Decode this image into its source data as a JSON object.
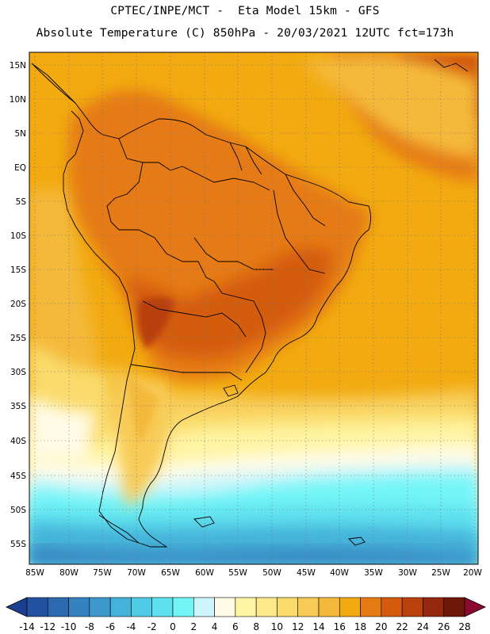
{
  "header": {
    "line1": "CPTEC/INPE/MCT -  Eta Model 15km - GFS",
    "line2": "Absolute Temperature (C) 850hPa - 20/03/2021 12UTC fct=173h"
  },
  "map": {
    "lat_labels": [
      "15N",
      "10N",
      "5N",
      "EQ",
      "5S",
      "10S",
      "15S",
      "20S",
      "25S",
      "30S",
      "35S",
      "40S",
      "45S",
      "50S",
      "55S"
    ],
    "lon_labels": [
      "85W",
      "80W",
      "75W",
      "70W",
      "65W",
      "60W",
      "55W",
      "50W",
      "45W",
      "40W",
      "35W",
      "30W",
      "25W",
      "20W"
    ]
  },
  "legend": {
    "labels": [
      "-14",
      "-12",
      "-10",
      "-8",
      "-6",
      "-4",
      "-2",
      "0",
      "2",
      "4",
      "6",
      "8",
      "10",
      "12",
      "14",
      "16",
      "18",
      "20",
      "22",
      "24",
      "26",
      "28"
    ],
    "colors": [
      "#1c3f8f",
      "#22519f",
      "#2c6ab0",
      "#3582bf",
      "#3d99cc",
      "#44b2d9",
      "#4fcbe6",
      "#5fe0ee",
      "#73f5f6",
      "#ccf5fc",
      "#fffbe6",
      "#fff4a3",
      "#fde98a",
      "#fadb6c",
      "#f7cb56",
      "#f4b93b",
      "#f2aa10",
      "#e57a12",
      "#d45b0e",
      "#b8410c",
      "#93280e",
      "#6e180a",
      "#8a0b2d"
    ]
  }
}
